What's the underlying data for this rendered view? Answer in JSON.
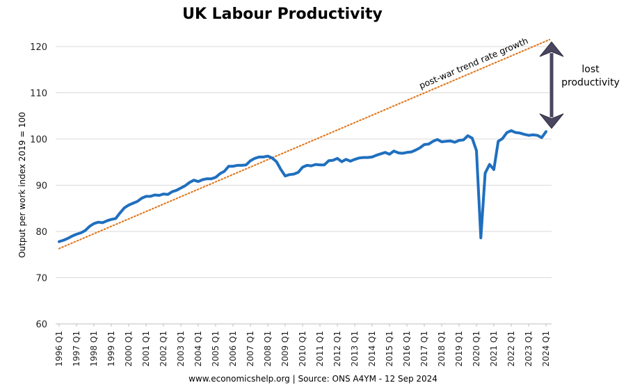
{
  "chart_data": {
    "type": "line",
    "title": "UK Labour Productivity",
    "ylabel": "Output per work index 2019 = 100",
    "xlabel": "",
    "ylim": [
      60,
      120
    ],
    "yticks": [
      60,
      70,
      80,
      90,
      100,
      110,
      120
    ],
    "xtick_labels": [
      "1996 Q1",
      "1997 Q1",
      "1998 Q1",
      "1999 Q1",
      "2000 Q1",
      "2001 Q1",
      "2002 Q1",
      "2003 Q1",
      "2004 Q1",
      "2005 Q1",
      "2006 Q1",
      "2007 Q1",
      "2008 Q1",
      "2009 Q1",
      "2010 Q1",
      "2011 Q1",
      "2012 Q1",
      "2013 Q1",
      "2014 Q1",
      "2015 Q1",
      "2016 Q1",
      "2017 Q1",
      "2018 Q1",
      "2019 Q1",
      "2020 Q1",
      "2021 Q1",
      "2022 Q1",
      "2023 Q1",
      "2024 Q1"
    ],
    "grid": true,
    "colors": {
      "series": "#1f6fbf",
      "trend": "#e07b22",
      "arrow": "#4a4660",
      "grid": "#d9d9d9"
    },
    "series": [
      {
        "values": [
          77.8,
          78.1,
          78.5,
          79.0,
          79.4,
          79.7,
          80.2,
          81.1,
          81.7,
          82.0,
          81.9,
          82.3,
          82.6,
          82.8,
          84.0,
          85.1,
          85.7,
          86.1,
          86.5,
          87.2,
          87.6,
          87.6,
          87.9,
          87.8,
          88.1,
          88.0,
          88.6,
          88.9,
          89.4,
          89.9,
          90.6,
          91.1,
          90.8,
          91.2,
          91.4,
          91.4,
          91.7,
          92.5,
          93.0,
          94.1,
          94.1,
          94.3,
          94.3,
          94.4,
          95.3,
          95.8,
          96.1,
          96.1,
          96.3,
          95.9,
          95.1,
          93.4,
          92.0,
          92.3,
          92.4,
          92.8,
          93.9,
          94.3,
          94.2,
          94.5,
          94.4,
          94.4,
          95.3,
          95.4,
          95.8,
          95.1,
          95.6,
          95.2,
          95.6,
          95.9,
          96.0,
          96.0,
          96.1,
          96.5,
          96.8,
          97.1,
          96.7,
          97.4,
          97.0,
          96.9,
          97.1,
          97.2,
          97.6,
          98.1,
          98.8,
          98.9,
          99.5,
          99.9,
          99.4,
          99.5,
          99.6,
          99.3,
          99.7,
          99.8,
          100.7,
          100.2,
          97.5,
          78.6,
          92.6,
          94.5,
          93.4,
          99.5,
          100.1,
          101.4,
          101.8,
          101.4,
          101.3,
          101.0,
          100.8,
          100.9,
          100.8,
          100.3,
          101.6
        ]
      }
    ],
    "trend_line": {
      "label": "post-war trend rate growth",
      "start_value": 76.3,
      "end_value": 121.5
    },
    "annotations": {
      "gap_label_line1": "lost",
      "gap_label_line2": "productivity",
      "arrow_top": 121.0,
      "arrow_bottom": 102.3
    },
    "source": "www.economicshelp.org | Source: ONS A4YM - 12 Sep 2024"
  }
}
